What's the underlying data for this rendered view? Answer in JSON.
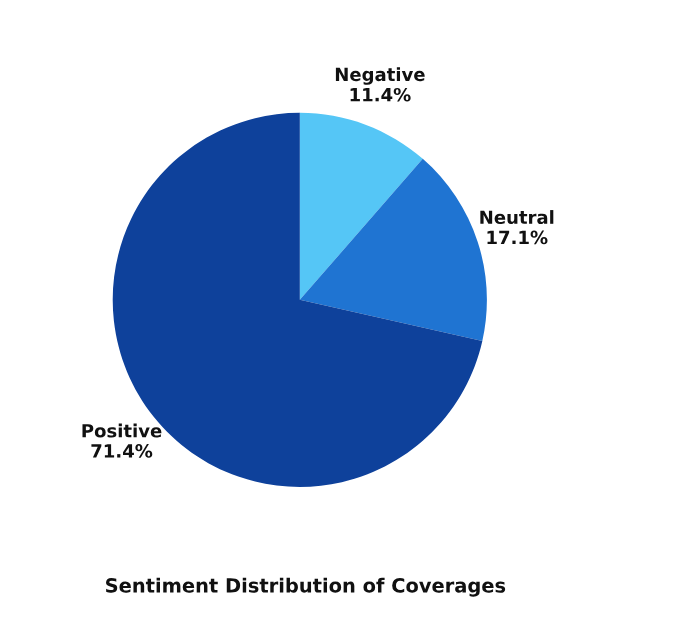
{
  "chart_data": {
    "type": "pie",
    "title": "Sentiment Distribution of Coverages",
    "categories": [
      "Negative",
      "Neutral",
      "Positive"
    ],
    "values": [
      11.4,
      17.1,
      71.4
    ],
    "value_labels": [
      "11.4%",
      "17.1%",
      "71.4%"
    ],
    "colors": [
      "#55c6f6",
      "#1f74d2",
      "#0e419b"
    ],
    "legend": false
  }
}
